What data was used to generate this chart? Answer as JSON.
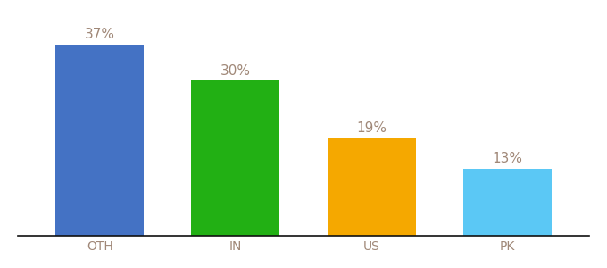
{
  "categories": [
    "OTH",
    "IN",
    "US",
    "PK"
  ],
  "values": [
    37,
    30,
    19,
    13
  ],
  "bar_colors": [
    "#4472c4",
    "#22b014",
    "#f5a800",
    "#5bc8f5"
  ],
  "label_color": "#a08878",
  "axis_line_color": "#111111",
  "background_color": "#ffffff",
  "ylim": [
    0,
    42
  ],
  "bar_width": 0.65,
  "value_labels": [
    "37%",
    "30%",
    "19%",
    "13%"
  ],
  "label_fontsize": 11,
  "tick_fontsize": 10
}
